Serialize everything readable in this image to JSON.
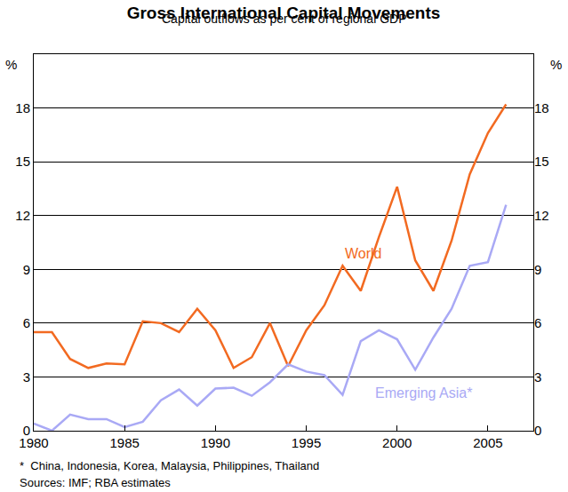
{
  "chart_data": {
    "type": "line",
    "title": "Gross International Capital Movements",
    "subtitle": "Capital outflows as per cent of regional GDP",
    "ylabel": "%",
    "y2label": "%",
    "notes": [
      "*  China, Indonesia, Korea, Malaysia, Philippines, Thailand",
      "Sources: IMF; RBA estimates"
    ],
    "x": [
      1980,
      1981,
      1982,
      1983,
      1984,
      1985,
      1986,
      1987,
      1988,
      1989,
      1990,
      1991,
      1992,
      1993,
      1994,
      1995,
      1996,
      1997,
      1998,
      1999,
      2000,
      2001,
      2002,
      2003,
      2004,
      2005,
      2006
    ],
    "series": [
      {
        "name": "World",
        "color": "#f26a21",
        "values": [
          5.5,
          5.5,
          4.0,
          3.5,
          3.75,
          3.7,
          6.1,
          6.0,
          5.5,
          6.8,
          5.6,
          3.5,
          4.1,
          6.0,
          3.6,
          5.6,
          7.0,
          9.2,
          7.8,
          10.8,
          13.6,
          9.5,
          7.8,
          10.6,
          14.3,
          16.6,
          18.2
        ]
      },
      {
        "name": "Emerging Asia*",
        "color": "#a9a9f5",
        "axis": "y2",
        "values": [
          0.4,
          0.0,
          0.9,
          0.65,
          0.65,
          0.2,
          0.5,
          1.7,
          2.3,
          1.4,
          2.35,
          2.4,
          1.95,
          2.7,
          3.7,
          3.3,
          3.1,
          2.0,
          5.0,
          5.6,
          5.1,
          3.4,
          5.2,
          6.8,
          9.2,
          9.4,
          12.6
        ]
      }
    ],
    "xlim": [
      1980,
      2007.5
    ],
    "xticks": [
      1980,
      1985,
      1990,
      1995,
      2000,
      2005
    ],
    "ylim": [
      0,
      21
    ],
    "yticks": [
      0,
      3,
      6,
      9,
      12,
      15,
      18
    ],
    "y2lim": [
      0,
      21
    ],
    "y2ticks": [
      0,
      3,
      6,
      9,
      12,
      15,
      18
    ],
    "grid": true
  }
}
